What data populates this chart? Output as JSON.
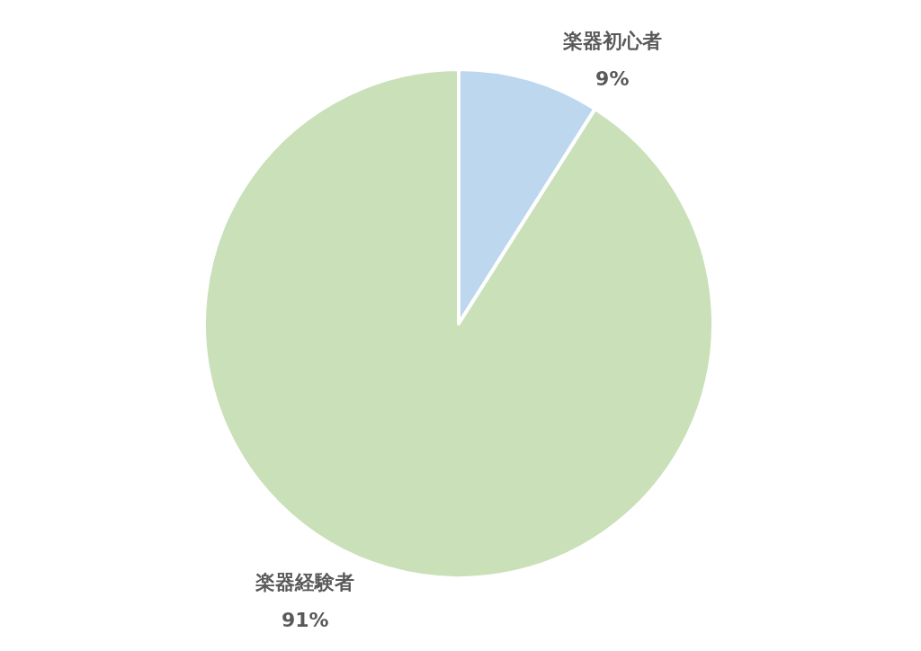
{
  "chart_data": {
    "type": "pie",
    "categories": [
      "楽器初心者",
      "楽器経験者"
    ],
    "values": [
      9,
      91
    ],
    "colors": [
      "#bdd7ee",
      "#c9e0b8"
    ],
    "value_labels": [
      "9%",
      "91%"
    ]
  }
}
